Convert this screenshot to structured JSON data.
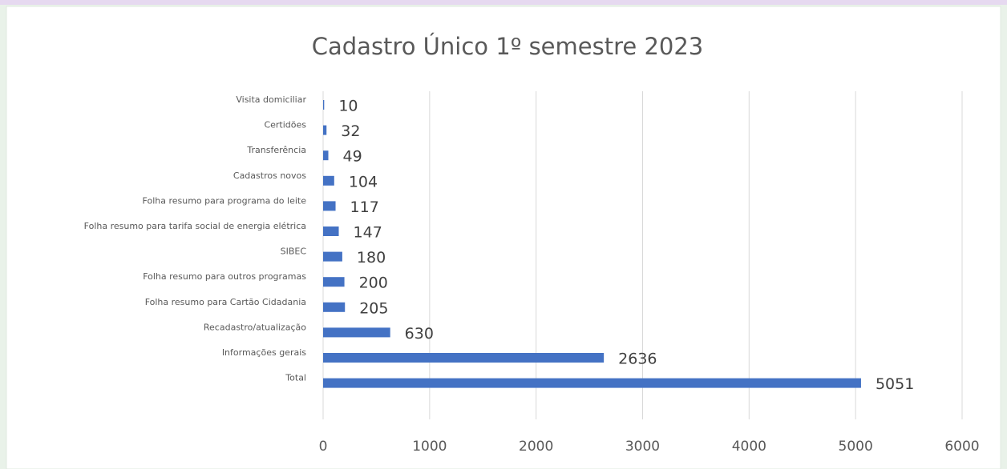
{
  "chart_data": {
    "type": "bar",
    "orientation": "horizontal",
    "title": "Cadastro Único 1º semestre 2023",
    "categories": [
      "Visita domiciliar",
      "Certidões",
      "Transferência",
      "Cadastros novos",
      "Folha resumo para programa do leite",
      "Folha resumo para tarifa social de energia elétrica",
      "SIBEC",
      "Folha resumo para outros programas",
      "Folha resumo para Cartão Cidadania",
      "Recadastro/atualização",
      "Informações gerais",
      "Total"
    ],
    "values": [
      10,
      32,
      49,
      104,
      117,
      147,
      180,
      200,
      205,
      630,
      2636,
      5051
    ],
    "color": "#4472c4",
    "xlim": [
      0,
      6000
    ],
    "xticks": [
      0,
      1000,
      2000,
      3000,
      4000,
      5000,
      6000
    ],
    "grid": true
  }
}
